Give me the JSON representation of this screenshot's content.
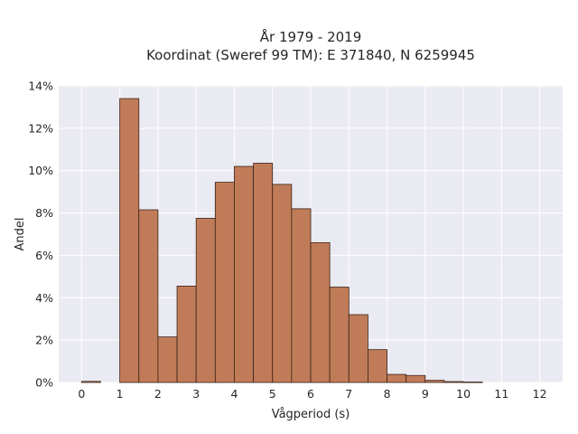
{
  "chart_data": {
    "type": "bar",
    "title": "År 1979 - 2019",
    "subtitle": "Koordinat (Sweref 99 TM): E 371840, N 6259945",
    "xlabel": "Vågperiod (s)",
    "ylabel": "Andel",
    "xlim": [
      -0.6,
      12.6
    ],
    "ylim": [
      0,
      14
    ],
    "x_ticks": [
      "0",
      "1",
      "2",
      "3",
      "4",
      "5",
      "6",
      "7",
      "8",
      "9",
      "10",
      "11",
      "12"
    ],
    "y_ticks": [
      "0%",
      "2%",
      "4%",
      "6%",
      "8%",
      "10%",
      "12%",
      "14%"
    ],
    "bin_width": 0.5,
    "bins": [
      {
        "start": 0.0,
        "value": 0.05
      },
      {
        "start": 1.0,
        "value": 13.4
      },
      {
        "start": 1.5,
        "value": 8.15
      },
      {
        "start": 2.0,
        "value": 2.15
      },
      {
        "start": 2.5,
        "value": 4.55
      },
      {
        "start": 3.0,
        "value": 7.75
      },
      {
        "start": 3.5,
        "value": 9.45
      },
      {
        "start": 4.0,
        "value": 10.2
      },
      {
        "start": 4.5,
        "value": 10.35
      },
      {
        "start": 5.0,
        "value": 9.35
      },
      {
        "start": 5.5,
        "value": 8.2
      },
      {
        "start": 6.0,
        "value": 6.6
      },
      {
        "start": 6.5,
        "value": 4.5
      },
      {
        "start": 7.0,
        "value": 3.2
      },
      {
        "start": 7.5,
        "value": 1.55
      },
      {
        "start": 8.0,
        "value": 0.38
      },
      {
        "start": 8.5,
        "value": 0.33
      },
      {
        "start": 9.0,
        "value": 0.1
      },
      {
        "start": 9.5,
        "value": 0.04
      },
      {
        "start": 10.0,
        "value": 0.02
      }
    ],
    "grid": true,
    "colors": {
      "bar_fill": "#c07c58",
      "bar_edge": "#3b2218",
      "plot_background": "#eaeaf2",
      "grid": "#ffffff"
    }
  }
}
